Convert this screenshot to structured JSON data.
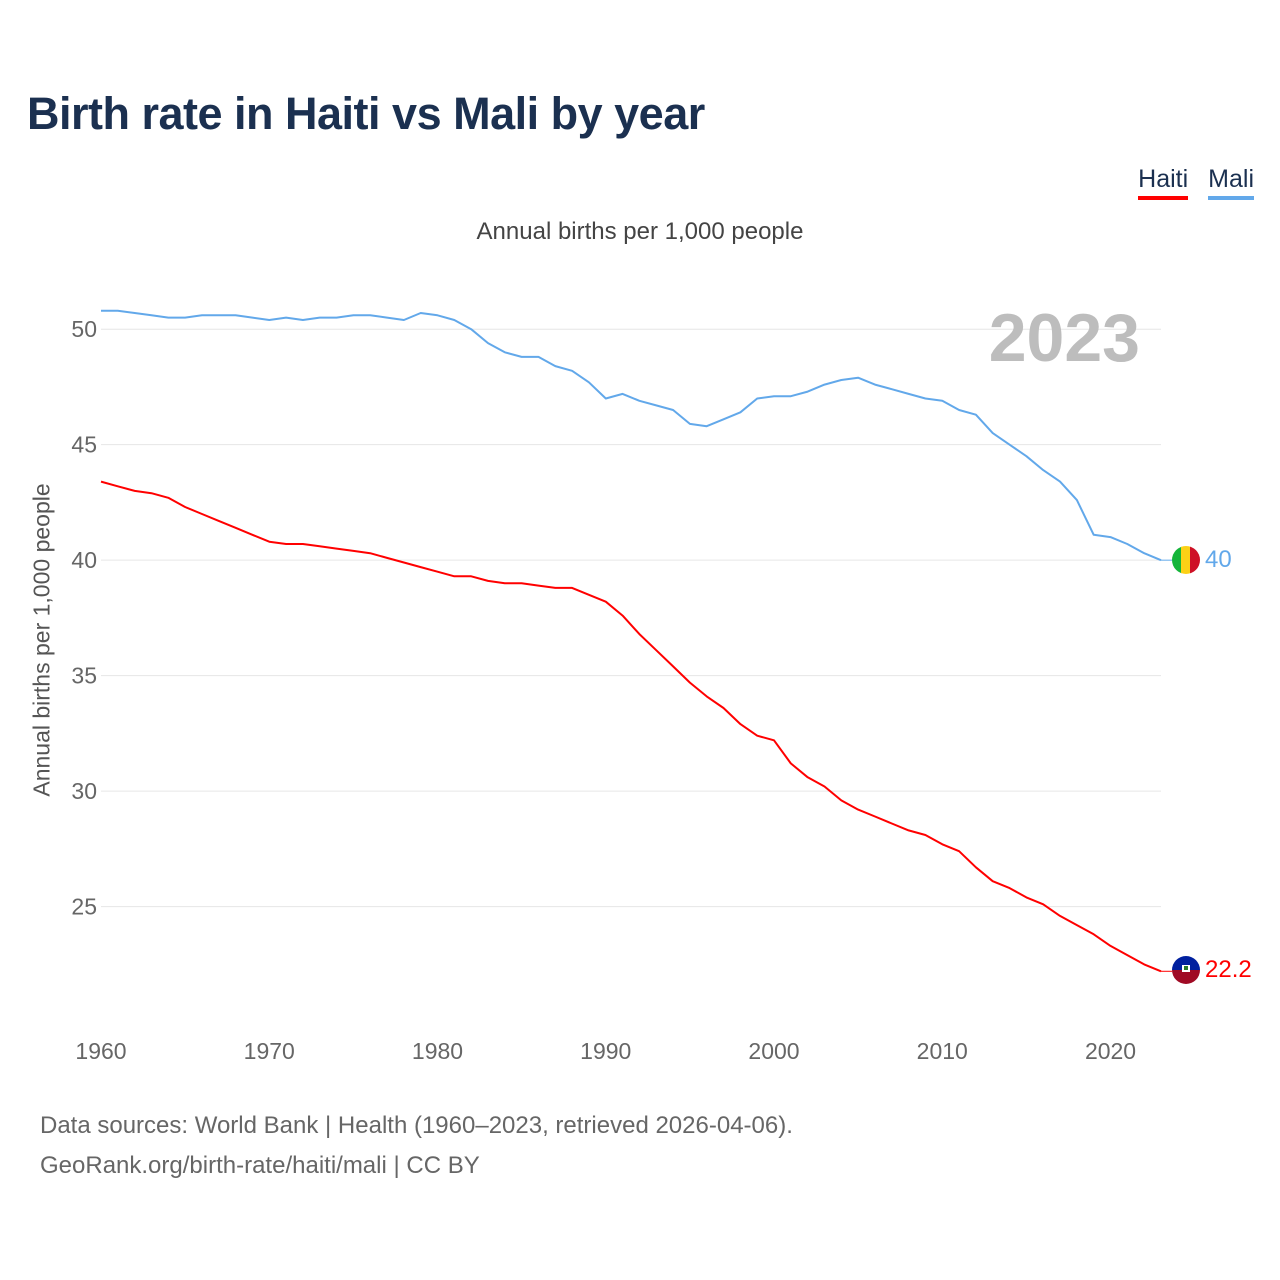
{
  "chart_data": {
    "type": "line",
    "title": "Birth rate in Haiti vs Mali by year",
    "subtitle": "Annual births per 1,000 people",
    "ylabel": "Annual births per 1,000 people",
    "xlabel": "",
    "year_label": "2023",
    "xlim": [
      1960,
      2023
    ],
    "ylim": [
      21,
      52
    ],
    "xticks": [
      "1960",
      "1970",
      "1980",
      "1990",
      "2000",
      "2010",
      "2020"
    ],
    "yticks": [
      "25",
      "30",
      "35",
      "40",
      "45",
      "50"
    ],
    "grid": true,
    "legend_position": "top-right",
    "x": [
      1960,
      1961,
      1962,
      1963,
      1964,
      1965,
      1966,
      1967,
      1968,
      1969,
      1970,
      1971,
      1972,
      1973,
      1974,
      1975,
      1976,
      1977,
      1978,
      1979,
      1980,
      1981,
      1982,
      1983,
      1984,
      1985,
      1986,
      1987,
      1988,
      1989,
      1990,
      1991,
      1992,
      1993,
      1994,
      1995,
      1996,
      1997,
      1998,
      1999,
      2000,
      2001,
      2002,
      2003,
      2004,
      2005,
      2006,
      2007,
      2008,
      2009,
      2010,
      2011,
      2012,
      2013,
      2014,
      2015,
      2016,
      2017,
      2018,
      2019,
      2020,
      2021,
      2022,
      2023
    ],
    "series": [
      {
        "name": "Haiti",
        "color": "#ff0000",
        "end_label": "22.2",
        "values": [
          43.4,
          43.2,
          43.0,
          42.9,
          42.7,
          42.3,
          42.0,
          41.7,
          41.4,
          41.1,
          40.8,
          40.7,
          40.7,
          40.6,
          40.5,
          40.4,
          40.3,
          40.1,
          39.9,
          39.7,
          39.5,
          39.3,
          39.3,
          39.1,
          39.0,
          39.0,
          38.9,
          38.8,
          38.8,
          38.5,
          38.2,
          37.6,
          36.8,
          36.1,
          35.4,
          34.7,
          34.1,
          33.6,
          32.9,
          32.4,
          32.2,
          31.2,
          30.6,
          30.2,
          29.6,
          29.2,
          28.9,
          28.6,
          28.3,
          28.1,
          27.7,
          27.4,
          26.7,
          26.1,
          25.8,
          25.4,
          25.1,
          24.6,
          24.2,
          23.8,
          23.3,
          22.9,
          22.5,
          22.2
        ]
      },
      {
        "name": "Mali",
        "color": "#62a8ea",
        "end_label": "40",
        "values": [
          50.8,
          50.8,
          50.7,
          50.6,
          50.5,
          50.5,
          50.6,
          50.6,
          50.6,
          50.5,
          50.4,
          50.5,
          50.4,
          50.5,
          50.5,
          50.6,
          50.6,
          50.5,
          50.4,
          50.7,
          50.6,
          50.4,
          50.0,
          49.4,
          49.0,
          48.8,
          48.8,
          48.4,
          48.2,
          47.7,
          47.0,
          47.2,
          46.9,
          46.7,
          46.5,
          45.9,
          45.8,
          46.1,
          46.4,
          47.0,
          47.1,
          47.1,
          47.3,
          47.6,
          47.8,
          47.9,
          47.6,
          47.4,
          47.2,
          47.0,
          46.9,
          46.5,
          46.3,
          45.5,
          45.0,
          44.5,
          43.9,
          43.4,
          42.6,
          41.1,
          41.0,
          40.7,
          40.3,
          40.0
        ]
      }
    ]
  },
  "footer": {
    "line1": "Data sources: World Bank | Health (1960–2023, retrieved 2026-04-06).",
    "line2": "GeoRank.org/birth-rate/haiti/mali | CC BY"
  }
}
